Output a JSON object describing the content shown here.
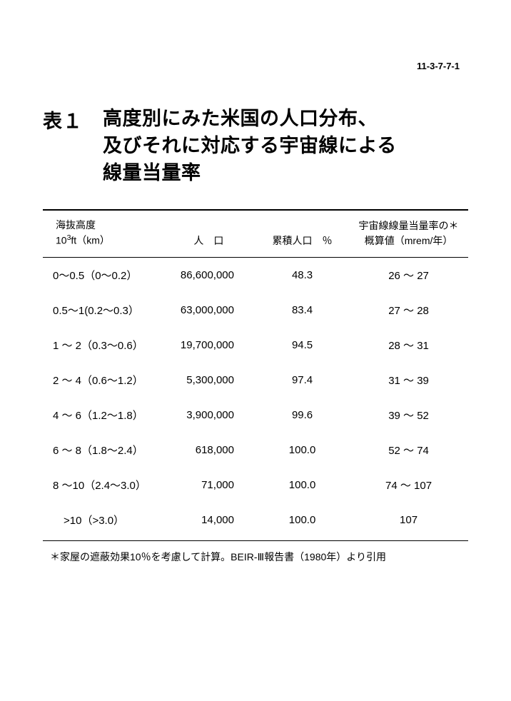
{
  "page_number": "11-3-7-7-1",
  "title": {
    "label": "表１",
    "line1": "高度別にみた米国の人口分布、",
    "line2": "及びそれに対応する宇宙線による",
    "line3": "線量当量率"
  },
  "table": {
    "headers": {
      "altitude_line1": "海抜高度",
      "altitude_line2_prefix": "10",
      "altitude_line2_sup": "3",
      "altitude_line2_suffix": "ft（km）",
      "population": "人　口",
      "cumulative": "累積人口　％",
      "dose_line1": "宇宙線線量当量率の＊",
      "dose_line2": "概算値（mrem/年）"
    },
    "rows": [
      {
        "altitude": "0～0.5（0～0.2）",
        "population": "86,600,000",
        "cumulative": "48.3",
        "dose": "26 ～ 27"
      },
      {
        "altitude": "0.5～1(0.2～0.3）",
        "population": "63,000,000",
        "cumulative": "83.4",
        "dose": "27 ～ 28"
      },
      {
        "altitude": "1 ～  2（0.3～0.6）",
        "population": "19,700,000",
        "cumulative": "94.5",
        "dose": "28 ～ 31"
      },
      {
        "altitude": "2 ～  4（0.6～1.2）",
        "population": "5,300,000",
        "cumulative": "97.4",
        "dose": "31 ～ 39"
      },
      {
        "altitude": "4 ～  6（1.2～1.8）",
        "population": "3,900,000",
        "cumulative": "99.6",
        "dose": "39 ～ 52"
      },
      {
        "altitude": "6 ～  8（1.8～2.4）",
        "population": "618,000",
        "cumulative": "100.0",
        "dose": "52 ～ 74"
      },
      {
        "altitude": "8 ～10（2.4～3.0）",
        "population": "71,000",
        "cumulative": "100.0",
        "dose": "74 ～ 107"
      },
      {
        "altitude": "　>10（>3.0）",
        "population": "14,000",
        "cumulative": "100.0",
        "dose": "107"
      }
    ]
  },
  "footnote": "＊家屋の遮蔽効果10％を考慮して計算。BEIR-Ⅲ報告書（1980年）より引用"
}
